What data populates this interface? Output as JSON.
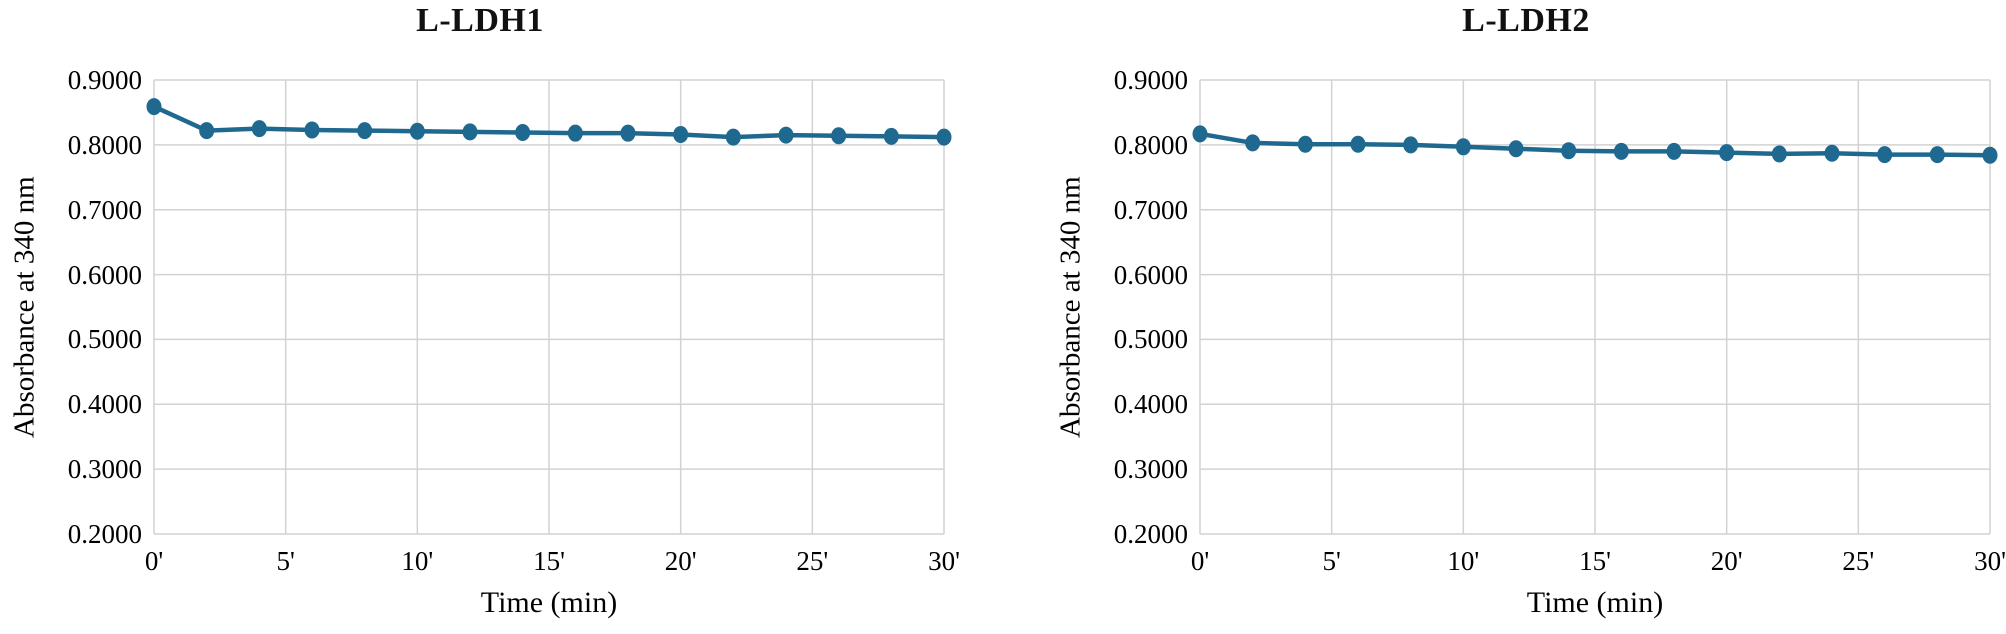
{
  "page": {
    "background": "#ffffff"
  },
  "chart_data": [
    {
      "type": "line",
      "title": "L-LDH1",
      "xlabel": "Time (min)",
      "ylabel": "Absorbance at 340 nm",
      "xlim": [
        0,
        30
      ],
      "ylim": [
        0.2,
        0.9
      ],
      "grid": true,
      "legend": "none",
      "x_tick_values": [
        0,
        5,
        10,
        15,
        20,
        25,
        30
      ],
      "x_tick_labels": [
        "0'",
        "5'",
        "10'",
        "15'",
        "20'",
        "25'",
        "30'"
      ],
      "y_tick_values": [
        0.9,
        0.8,
        0.7,
        0.6,
        0.5,
        0.4,
        0.3,
        0.2
      ],
      "y_tick_labels": [
        "0.9000",
        "0.8000",
        "0.7000",
        "0.6000",
        "0.5000",
        "0.4000",
        "0.3000",
        "0.2000"
      ],
      "x": [
        0,
        2,
        4,
        6,
        8,
        10,
        12,
        14,
        16,
        18,
        20,
        22,
        24,
        26,
        28,
        30
      ],
      "series": [
        {
          "name": "L-LDH1",
          "values": [
            0.859,
            0.822,
            0.825,
            0.823,
            0.822,
            0.821,
            0.82,
            0.819,
            0.818,
            0.818,
            0.816,
            0.812,
            0.815,
            0.814,
            0.813,
            0.812
          ]
        }
      ],
      "colors": {
        "line": "#1F6991",
        "marker": "#1F6991",
        "grid": "#D2D2D2",
        "text": "#000000"
      }
    },
    {
      "type": "line",
      "title": "L-LDH2",
      "xlabel": "Time (min)",
      "ylabel": "Absorbance at 340 nm",
      "xlim": [
        0,
        30
      ],
      "ylim": [
        0.2,
        0.9
      ],
      "grid": true,
      "legend": "none",
      "x_tick_values": [
        0,
        5,
        10,
        15,
        20,
        25,
        30
      ],
      "x_tick_labels": [
        "0'",
        "5'",
        "10'",
        "15'",
        "20'",
        "25'",
        "30'"
      ],
      "y_tick_values": [
        0.9,
        0.8,
        0.7,
        0.6,
        0.5,
        0.4,
        0.3,
        0.2
      ],
      "y_tick_labels": [
        "0.9000",
        "0.8000",
        "0.7000",
        "0.6000",
        "0.5000",
        "0.4000",
        "0.3000",
        "0.2000"
      ],
      "x": [
        0,
        2,
        4,
        6,
        8,
        10,
        12,
        14,
        16,
        18,
        20,
        22,
        24,
        26,
        28,
        30
      ],
      "series": [
        {
          "name": "L-LDH2",
          "values": [
            0.817,
            0.803,
            0.801,
            0.801,
            0.8,
            0.797,
            0.794,
            0.791,
            0.79,
            0.79,
            0.788,
            0.786,
            0.787,
            0.785,
            0.785,
            0.784
          ]
        }
      ],
      "colors": {
        "line": "#1F6991",
        "marker": "#1F6991",
        "grid": "#D2D2D2",
        "text": "#000000"
      }
    }
  ]
}
